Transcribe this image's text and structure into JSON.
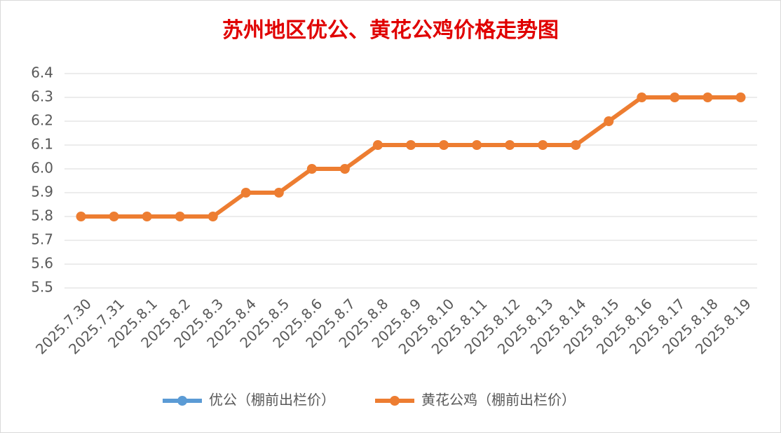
{
  "chart_data": {
    "type": "line",
    "title": "苏州地区优公、黄花公鸡价格走势图",
    "categories": [
      "2025.7.30",
      "2025.7.31",
      "2025.8.1",
      "2025.8.2",
      "2025.8.3",
      "2025.8.4",
      "2025.8.5",
      "2025.8.6",
      "2025.8.7",
      "2025.8.8",
      "2025.8.9",
      "2025.8.10",
      "2025.8.11",
      "2025.8.12",
      "2025.8.13",
      "2025.8.14",
      "2025.8.15",
      "2025.8.16",
      "2025.8.17",
      "2025.8.18",
      "2025.8.19"
    ],
    "series": [
      {
        "name": "优公（棚前出栏价）",
        "color": "#5b9bd5",
        "values": [
          null,
          null,
          null,
          null,
          null,
          null,
          null,
          null,
          null,
          null,
          null,
          null,
          null,
          null,
          null,
          null,
          null,
          null,
          null,
          null,
          null
        ]
      },
      {
        "name": "黄花公鸡（棚前出栏价）",
        "color": "#ed7d31",
        "values": [
          5.8,
          5.8,
          5.8,
          5.8,
          5.8,
          5.9,
          5.9,
          6.0,
          6.0,
          6.1,
          6.1,
          6.1,
          6.1,
          6.1,
          6.1,
          6.1,
          6.2,
          6.3,
          6.3,
          6.3,
          6.3
        ]
      }
    ],
    "ylim": [
      5.5,
      6.4
    ],
    "yticks": [
      5.5,
      5.6,
      5.7,
      5.8,
      5.9,
      {
        "value": 6,
        "label": "6.0"
      },
      6.1,
      6.2,
      6.3,
      6.4
    ],
    "grid": true,
    "legend": "bottom"
  }
}
